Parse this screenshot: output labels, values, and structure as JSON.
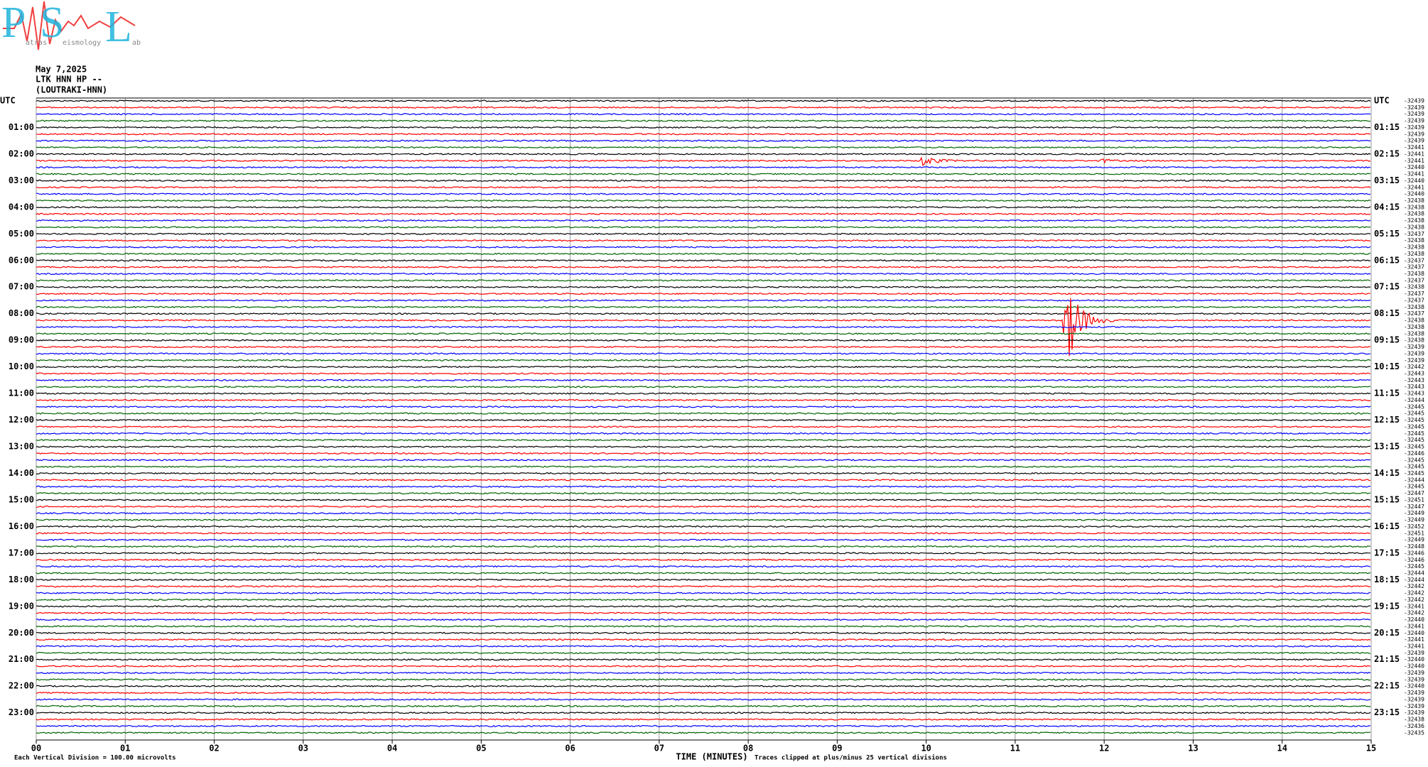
{
  "logo": {
    "letters": [
      "P",
      "S",
      "L"
    ],
    "words": [
      "atras",
      "eismology",
      "ab"
    ]
  },
  "header": {
    "date": "May 7,2025",
    "station": "LTK HNN HP --",
    "location": "(LOUTRAKI-HNN)"
  },
  "left_labels": [
    "UTC",
    "01:00",
    "02:00",
    "03:00",
    "04:00",
    "05:00",
    "06:00",
    "07:00",
    "08:00",
    "09:00",
    "10:00",
    "11:00",
    "12:00",
    "13:00",
    "14:00",
    "15:00",
    "16:00",
    "17:00",
    "18:00",
    "19:00",
    "20:00",
    "21:00",
    "22:00",
    "23:00"
  ],
  "right_labels": [
    "UTC",
    "01:15",
    "02:15",
    "03:15",
    "04:15",
    "05:15",
    "06:15",
    "07:15",
    "08:15",
    "09:15",
    "10:15",
    "11:15",
    "12:15",
    "13:15",
    "14:15",
    "15:15",
    "16:15",
    "17:15",
    "18:15",
    "19:15",
    "20:15",
    "21:15",
    "22:15",
    "23:15"
  ],
  "offsets": [
    "-32439",
    "-32439",
    "-32439",
    "-32439",
    "-32439",
    "-32439",
    "-32439",
    "-32441",
    "-32441",
    "-32441",
    "-32440",
    "-32441",
    "-32440",
    "-32441",
    "-32440",
    "-32438",
    "-32438",
    "-32438",
    "-32438",
    "-32438",
    "-32437",
    "-32438",
    "-32438",
    "-32438",
    "-32437",
    "-32437",
    "-32438",
    "-32437",
    "-32438",
    "-32437",
    "-32437",
    "-32438",
    "-32437",
    "-32438",
    "-32438",
    "-32438",
    "-32438",
    "-32439",
    "-32439",
    "-32439",
    "-32442",
    "-32443",
    "-32443",
    "-32443",
    "-32443",
    "-32444",
    "-32445",
    "-32445",
    "-32445",
    "-32445",
    "-32445",
    "-32445",
    "-32445",
    "-32446",
    "-32445",
    "-32445",
    "-32445",
    "-32444",
    "-32445",
    "-32447",
    "-32451",
    "-32447",
    "-32449",
    "-32449",
    "-32452",
    "-32451",
    "-32449",
    "-32448",
    "-32446",
    "-32446",
    "-32445",
    "-32444",
    "-32444",
    "-32442",
    "-32442",
    "-32442",
    "-32441",
    "-32442",
    "-32440",
    "-32441",
    "-32440",
    "-32441",
    "-32441",
    "-32439",
    "-32440",
    "-32440",
    "-32439",
    "-32439",
    "-32440",
    "-32439",
    "-32439",
    "-32439",
    "-32439",
    "-32438",
    "-32436",
    "-32435"
  ],
  "trace_colors": [
    "#000000",
    "#ff0000",
    "#0000ff",
    "#006400"
  ],
  "x_ticks": [
    "00",
    "01",
    "02",
    "03",
    "04",
    "05",
    "06",
    "07",
    "08",
    "09",
    "10",
    "11",
    "12",
    "13",
    "14",
    "15"
  ],
  "x_axis_title": "TIME (MINUTES)",
  "footer": {
    "scale": "Each Vertical Division =  100.00 microvolts",
    "clip": "Traces clipped at plus/minus 25 vertical divisions"
  }
}
